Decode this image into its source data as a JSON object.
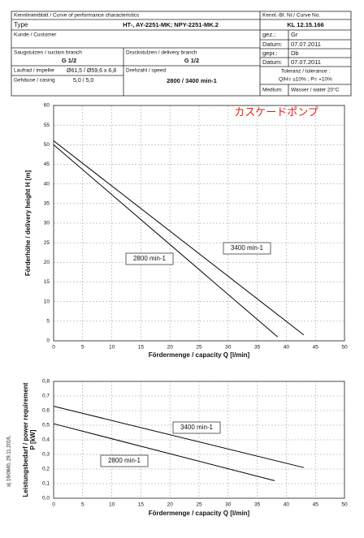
{
  "header": {
    "sheet": "Kennlinienblatt / Curve of performance characteristics",
    "curve_no_label": "Kennl.-Bl. Nr./ Curve No.",
    "type_label": "Type",
    "type": "HT-, AY-2251-MK; NPY-2251-MK.2",
    "curve_no": "KL 12.15.166",
    "customer_label": "Kunde / Customer",
    "drawn_label": "gez.:",
    "drawn": "Gr",
    "date1_label": "Datum:",
    "date1": "07.07.2011",
    "checked_label": "gepr.:",
    "checked": "Db",
    "date2_label": "Datum:",
    "date2": "07.07.2011",
    "suction_label": "Saugstutzen / suction branch",
    "suction": "G 1/2",
    "delivery_label": "Druckstutzen / delivery branch",
    "delivery": "G 1/2",
    "impeller_label": "Laufrad / impeller",
    "impeller": "Ø61,5 / Ø59,6 x 6,8",
    "speed_label": "Drehzahl / speed",
    "speed": "2800 / 3400 min-1",
    "tolerance_label": "Toleranz / tolerance :",
    "tolerance": "Q/H= ±10% ;  P= +10%",
    "casing_label": "Gehäuse / casing",
    "casing": "5,0 / 5,0",
    "medium_label": "Medium:",
    "medium": "Wasser / water 20°C"
  },
  "side_note": "a) 16/0840, 29.11.2016,",
  "chart_data": [
    {
      "type": "line",
      "annotation": "カスケードポンプ",
      "x_label": "Fördermenge / capacity  Q [l/min]",
      "y_label": "Förderhöhe / delivery height  H [m]",
      "xlim": [
        0,
        50
      ],
      "ylim": [
        0,
        60
      ],
      "xticks": [
        0,
        5,
        10,
        15,
        20,
        25,
        30,
        35,
        40,
        45,
        50
      ],
      "yticks": [
        0,
        5,
        10,
        15,
        20,
        25,
        30,
        35,
        40,
        45,
        50,
        55,
        60
      ],
      "grid": true,
      "series": [
        {
          "name": "2800 min-1",
          "color": "#000000",
          "x": [
            0,
            38.5
          ],
          "values": [
            50,
            1
          ]
        },
        {
          "name": "3400 min-1",
          "color": "#000000",
          "x": [
            0,
            43
          ],
          "values": [
            51,
            1.5
          ]
        }
      ]
    },
    {
      "type": "line",
      "x_label": "Fördermenge / capacity  Q [l/min]",
      "y_label": "Leistungsbedarf / power requirement",
      "y_label2": "P [kW]",
      "xlim": [
        0,
        50
      ],
      "ylim": [
        0,
        0.8
      ],
      "xticks": [
        0,
        5,
        10,
        15,
        20,
        25,
        30,
        35,
        40,
        45,
        50
      ],
      "yticks": [
        {
          "value": 0,
          "label": "0,0"
        },
        {
          "value": 0.1,
          "label": "0,1"
        },
        {
          "value": 0.2,
          "label": "0,2"
        },
        {
          "value": 0.3,
          "label": "0,3"
        },
        {
          "value": 0.4,
          "label": "0,4"
        },
        {
          "value": 0.5,
          "label": "0,5"
        },
        {
          "value": 0.6,
          "label": "0,6"
        },
        {
          "value": 0.7,
          "label": "0,7"
        },
        {
          "value": 0.8,
          "label": "0,8"
        }
      ],
      "grid": true,
      "series": [
        {
          "name": "2800 min-1",
          "color": "#000000",
          "x": [
            0,
            38
          ],
          "values": [
            0.51,
            0.12
          ]
        },
        {
          "name": "3400 min-1",
          "color": "#000000",
          "x": [
            0,
            43
          ],
          "values": [
            0.63,
            0.21
          ]
        }
      ]
    }
  ]
}
